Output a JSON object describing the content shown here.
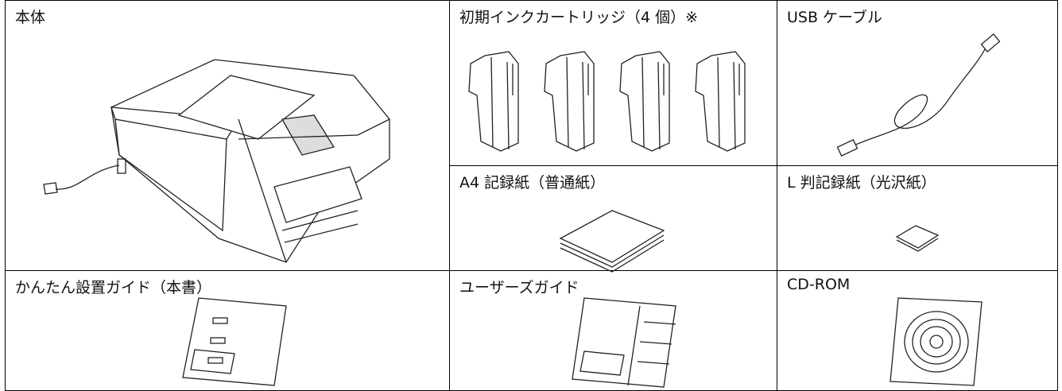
{
  "items": [
    {
      "label": "本体"
    },
    {
      "label": "初期インクカートリッジ（4 個）※"
    },
    {
      "label": "USB ケーブル"
    },
    {
      "label": "A4 記録紙（普通紙）"
    },
    {
      "label": "L 判記録紙（光沢紙）"
    },
    {
      "label": "かんたん設置ガイド（本書）"
    },
    {
      "label": "ユーザーズガイド"
    },
    {
      "label": "CD-ROM"
    }
  ]
}
